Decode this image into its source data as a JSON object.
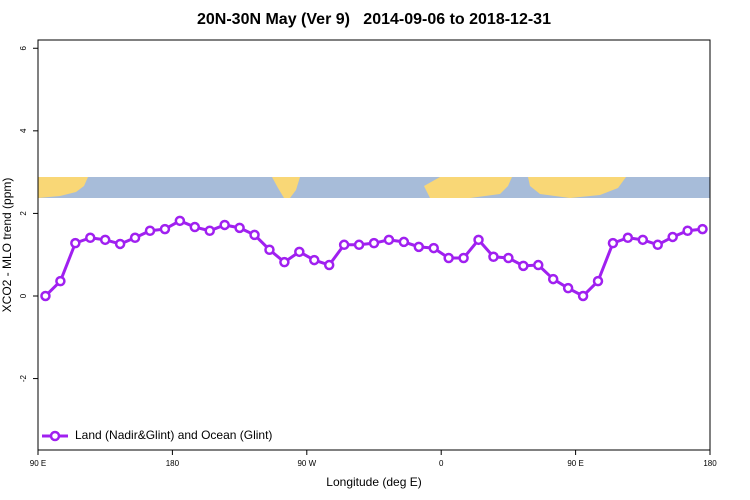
{
  "chart_data": {
    "type": "line",
    "title": "20N-30N May (Ver 9)   2014-09-06 to 2018-12-31",
    "x_label": "Longitude (deg E)",
    "y_label": "XCO2 - MLO trend (ppm)",
    "x": [
      95,
      105,
      115,
      125,
      135,
      145,
      155,
      165,
      175,
      185,
      195,
      205,
      215,
      225,
      235,
      245,
      255,
      265,
      275,
      285,
      295,
      305,
      315,
      325,
      335,
      345,
      355,
      365,
      375,
      385,
      395,
      405,
      415,
      425,
      435,
      445,
      455,
      465,
      475,
      485,
      495,
      505,
      515,
      525,
      535
    ],
    "series": [
      {
        "name": "Land (Nadir&Glint) and Ocean (Glint)",
        "color": "#a020f0",
        "values": [
          0,
          0.36,
          1.28,
          1.41,
          1.36,
          1.26,
          1.41,
          1.58,
          1.62,
          1.82,
          1.67,
          1.58,
          1.72,
          1.65,
          1.48,
          1.12,
          0.82,
          1.07,
          0.87,
          0.75,
          1.24,
          1.24,
          1.28,
          1.36,
          1.31,
          1.19,
          1.16,
          0.92,
          0.92,
          1.36,
          0.95,
          0.92,
          0.73,
          0.75,
          0.41,
          0.19,
          0,
          0.36,
          1.28,
          1.41,
          1.36,
          1.24,
          1.43,
          1.58,
          1.62
        ]
      }
    ],
    "xlim": [
      90,
      540
    ],
    "xticks": [
      {
        "value": 90,
        "label": "90 E"
      },
      180,
      {
        "value": 270,
        "label": "90 W"
      },
      {
        "value": 360,
        "label": "0"
      },
      {
        "value": 450,
        "label": "90 E"
      },
      {
        "value": 540,
        "label": "180"
      }
    ],
    "ylim": [
      -3.73,
      6.2
    ],
    "yticks": [
      -2,
      0,
      2,
      4,
      6
    ],
    "legend": "bottom-left"
  }
}
